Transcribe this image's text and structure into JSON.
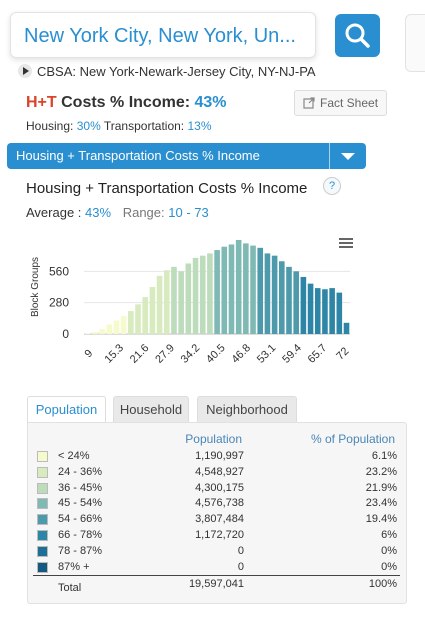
{
  "search": {
    "value": "New York City, New York, Un..."
  },
  "cbsa": {
    "text": "CBSA: New York-Newark-Jersey City, NY-NJ-PA"
  },
  "summary": {
    "ht_label": "H+T",
    "metric_label": "Costs % Income:",
    "metric_value": "43%",
    "housing_label": "Housing:",
    "housing_value": "30%",
    "transport_label": "Transportation:",
    "transport_value": "13%"
  },
  "fact_sheet": {
    "label": "Fact Sheet"
  },
  "selector": {
    "selected": "Housing + Transportation Costs % Income"
  },
  "chart_header": {
    "title": "Housing + Transportation Costs % Income",
    "help": "?",
    "average_label": "Average :",
    "average_value": "43%",
    "range_label": "Range:",
    "range_value": "10 - 73"
  },
  "chart_data": {
    "type": "bar",
    "ylabel": "Block Groups",
    "yticks": [
      0,
      280,
      560
    ],
    "ylim": [
      0,
      840
    ],
    "xticks": [
      "9",
      "15.3",
      "21.6",
      "27.9",
      "34.2",
      "40.5",
      "46.8",
      "53.1",
      "59.4",
      "65.7",
      "72"
    ],
    "grid": true,
    "values": [
      4,
      18,
      45,
      85,
      120,
      160,
      205,
      265,
      330,
      420,
      520,
      570,
      600,
      560,
      630,
      680,
      700,
      720,
      750,
      780,
      800,
      840,
      810,
      790,
      770,
      720,
      700,
      650,
      600,
      560,
      510,
      450,
      410,
      400,
      410,
      370,
      100
    ],
    "colors": [
      "#f5fbcc",
      "#f5fbcc",
      "#f5fbcc",
      "#f5fbcc",
      "#f5fbcc",
      "#f5fbcc",
      "#d8ebbf",
      "#d8ebbf",
      "#d8ebbf",
      "#d8ebbf",
      "#d8ebbf",
      "#d8ebbf",
      "#bcdcbb",
      "#bcdcbb",
      "#bcdcbb",
      "#bcdcbb",
      "#bcdcbb",
      "#bcdcbb",
      "#7fb9b4",
      "#7fb9b4",
      "#7fb9b4",
      "#7fb9b4",
      "#7fb9b4",
      "#7fb9b4",
      "#4c9aab",
      "#4c9aab",
      "#4c9aab",
      "#4c9aab",
      "#4c9aab",
      "#4c9aab",
      "#2e86a7",
      "#2e86a7",
      "#2e86a7",
      "#2e86a7",
      "#2e86a7",
      "#2e86a7",
      "#2e86a7"
    ]
  },
  "tabs": [
    {
      "label": "Population",
      "active": true
    },
    {
      "label": "Household",
      "active": false
    },
    {
      "label": "Neighborhood",
      "active": false
    }
  ],
  "table": {
    "headers": {
      "population": "Population",
      "percent": "% of Population"
    },
    "rows": [
      {
        "label": "< 24%",
        "population": "1,190,997",
        "percent": "6.1%",
        "color": "#f5fbcc"
      },
      {
        "label": "24 - 36%",
        "population": "4,548,927",
        "percent": "23.2%",
        "color": "#d8ebbf"
      },
      {
        "label": "36 - 45%",
        "population": "4,300,175",
        "percent": "21.9%",
        "color": "#bcdcbb"
      },
      {
        "label": "45 - 54%",
        "population": "4,576,738",
        "percent": "23.4%",
        "color": "#7fb9b4"
      },
      {
        "label": "54 - 66%",
        "population": "3,807,484",
        "percent": "19.4%",
        "color": "#4c9aab"
      },
      {
        "label": "66 - 78%",
        "population": "1,172,720",
        "percent": "6%",
        "color": "#2e86a7"
      },
      {
        "label": "78 - 87%",
        "population": "0",
        "percent": "0%",
        "color": "#1d6f96"
      },
      {
        "label": "87% +",
        "population": "0",
        "percent": "0%",
        "color": "#145a80"
      }
    ],
    "total": {
      "label": "Total",
      "population": "19,597,041",
      "percent": "100%"
    }
  }
}
